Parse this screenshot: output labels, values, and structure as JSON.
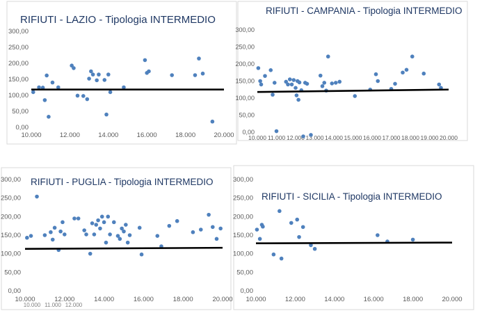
{
  "chart_data": [
    {
      "type": "scatter",
      "title": "RIFIUTI - LAZIO - Tipologia INTERMEDIO",
      "x_ticks": [
        "10.000",
        "12.000",
        "14.000",
        "16.000",
        "18.000",
        "20.000"
      ],
      "y_ticks": [
        "0,00",
        "50,00",
        "100,00",
        "150,00",
        "200,00",
        "250,00",
        "300,00"
      ],
      "xlim": [
        10000,
        20000
      ],
      "ylim": [
        0,
        300
      ],
      "reference_line": [
        118,
        118
      ],
      "points": [
        [
          10100,
          110
        ],
        [
          10400,
          125
        ],
        [
          10600,
          124
        ],
        [
          10700,
          85
        ],
        [
          10800,
          162
        ],
        [
          10900,
          33
        ],
        [
          11100,
          140
        ],
        [
          11400,
          125
        ],
        [
          12100,
          193
        ],
        [
          12200,
          185
        ],
        [
          12400,
          99
        ],
        [
          12700,
          98
        ],
        [
          12900,
          88
        ],
        [
          13000,
          152
        ],
        [
          13100,
          175
        ],
        [
          13200,
          165
        ],
        [
          13400,
          147
        ],
        [
          13500,
          165
        ],
        [
          13800,
          148
        ],
        [
          13900,
          40
        ],
        [
          14000,
          165
        ],
        [
          14100,
          110
        ],
        [
          14800,
          125
        ],
        [
          15900,
          210
        ],
        [
          16000,
          170
        ],
        [
          16100,
          175
        ],
        [
          17300,
          163
        ],
        [
          18500,
          163
        ],
        [
          18700,
          215
        ],
        [
          18900,
          168
        ],
        [
          19400,
          18
        ]
      ]
    },
    {
      "type": "scatter",
      "title": "RIFIUTI - CAMPANIA - Tipologia INTERMEDIO",
      "x_ticks": [
        "10.000",
        "11.000",
        "12.000",
        "13.000",
        "14.000",
        "15.000",
        "16.000",
        "17.000",
        "18.000",
        "19.000",
        "20.000"
      ],
      "y_ticks": [
        "0,00",
        "50,00",
        "100,00",
        "150,00",
        "200,00",
        "250,00",
        "300,00"
      ],
      "xlim": [
        10000,
        20000
      ],
      "ylim": [
        0,
        300
      ],
      "reference_line": [
        118,
        125
      ],
      "points": [
        [
          10050,
          188
        ],
        [
          10150,
          150
        ],
        [
          10200,
          140
        ],
        [
          10400,
          165
        ],
        [
          10700,
          182
        ],
        [
          10800,
          110
        ],
        [
          10900,
          145
        ],
        [
          11000,
          3
        ],
        [
          11500,
          148
        ],
        [
          11600,
          140
        ],
        [
          11700,
          155
        ],
        [
          11800,
          140
        ],
        [
          11900,
          153
        ],
        [
          12000,
          130
        ],
        [
          12050,
          108
        ],
        [
          12100,
          150
        ],
        [
          12150,
          95
        ],
        [
          12200,
          146
        ],
        [
          12300,
          123
        ],
        [
          12400,
          -20
        ],
        [
          12500,
          145
        ],
        [
          12600,
          142
        ],
        [
          12800,
          -8
        ],
        [
          13300,
          166
        ],
        [
          13400,
          135
        ],
        [
          13500,
          145
        ],
        [
          13600,
          122
        ],
        [
          13700,
          222
        ],
        [
          13900,
          143
        ],
        [
          14100,
          145
        ],
        [
          14300,
          148
        ],
        [
          15100,
          106
        ],
        [
          15900,
          125
        ],
        [
          16200,
          170
        ],
        [
          16300,
          150
        ],
        [
          17000,
          127
        ],
        [
          17200,
          142
        ],
        [
          17600,
          175
        ],
        [
          17800,
          183
        ],
        [
          18100,
          222
        ],
        [
          18700,
          172
        ],
        [
          19500,
          140
        ],
        [
          19600,
          130
        ]
      ]
    },
    {
      "type": "scatter",
      "title": "RIFIUTI - PUGLIA - Tipologia INTERMEDIO",
      "x_ticks": [
        "10.000",
        "12.000",
        "14.000",
        "16.000",
        "18.000",
        "20.000"
      ],
      "x_ticks_hidden": [
        "10.000",
        "11.000",
        "12.000"
      ],
      "y_ticks": [
        "0,00",
        "50,00",
        "100,00",
        "150,00",
        "200,00",
        "250,00",
        "300,00"
      ],
      "xlim": [
        10000,
        20000
      ],
      "ylim": [
        0,
        300
      ],
      "reference_line": [
        113,
        116
      ],
      "points": [
        [
          10100,
          143
        ],
        [
          10300,
          148
        ],
        [
          10600,
          254
        ],
        [
          11000,
          150
        ],
        [
          11300,
          158
        ],
        [
          11400,
          138
        ],
        [
          11500,
          170
        ],
        [
          11700,
          110
        ],
        [
          11800,
          160
        ],
        [
          11900,
          185
        ],
        [
          12000,
          152
        ],
        [
          12500,
          195
        ],
        [
          12700,
          195
        ],
        [
          13000,
          163
        ],
        [
          13100,
          152
        ],
        [
          13300,
          100
        ],
        [
          13400,
          182
        ],
        [
          13500,
          152
        ],
        [
          13600,
          178
        ],
        [
          13700,
          190
        ],
        [
          13800,
          168
        ],
        [
          13900,
          200
        ],
        [
          14000,
          185
        ],
        [
          14100,
          130
        ],
        [
          14200,
          200
        ],
        [
          14300,
          152
        ],
        [
          14500,
          185
        ],
        [
          14700,
          148
        ],
        [
          14800,
          140
        ],
        [
          14900,
          168
        ],
        [
          15000,
          160
        ],
        [
          15100,
          178
        ],
        [
          15200,
          130
        ],
        [
          15300,
          150
        ],
        [
          15800,
          170
        ],
        [
          15900,
          98
        ],
        [
          16700,
          148
        ],
        [
          16900,
          120
        ],
        [
          17300,
          175
        ],
        [
          17700,
          188
        ],
        [
          18500,
          158
        ],
        [
          18900,
          165
        ],
        [
          19300,
          205
        ],
        [
          19500,
          172
        ],
        [
          19700,
          140
        ],
        [
          19900,
          168
        ]
      ]
    },
    {
      "type": "scatter",
      "title": "RIFIUTI - SICILIA - Tipologia INTERMEDIO",
      "x_ticks": [
        "10.000",
        "12.000",
        "14.000",
        "16.000",
        "18.000",
        "20.000"
      ],
      "y_ticks": [
        "0,00",
        "50,00",
        "100,00",
        "150,00",
        "200,00",
        "250,00",
        "300,00"
      ],
      "xlim": [
        10000,
        20000
      ],
      "ylim": [
        0,
        300
      ],
      "reference_line": [
        128,
        130
      ],
      "points": [
        [
          10050,
          165
        ],
        [
          10200,
          140
        ],
        [
          10300,
          178
        ],
        [
          10350,
          173
        ],
        [
          10900,
          98
        ],
        [
          11200,
          215
        ],
        [
          11300,
          87
        ],
        [
          11800,
          183
        ],
        [
          12100,
          192
        ],
        [
          12200,
          145
        ],
        [
          12400,
          172
        ],
        [
          12800,
          123
        ],
        [
          13000,
          113
        ],
        [
          16200,
          150
        ],
        [
          16700,
          133
        ],
        [
          18000,
          138
        ]
      ]
    }
  ],
  "colors": {
    "point": "#4f81bd",
    "line": "#000000",
    "title": "#1f3864",
    "tick": "#595959"
  }
}
